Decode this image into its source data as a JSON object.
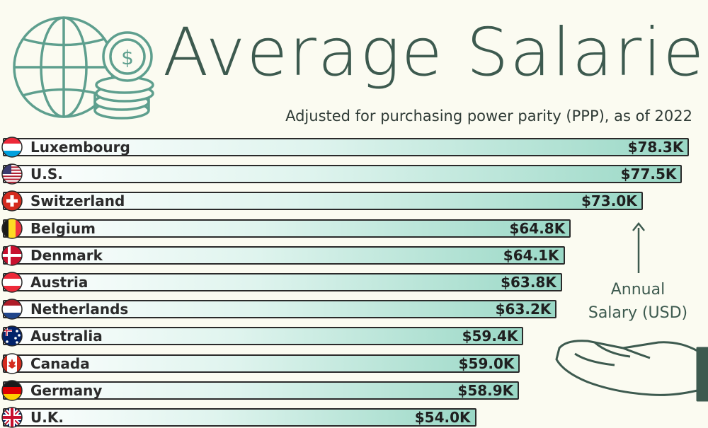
{
  "title": "Average Salaries",
  "subtitle": "Adjusted for purchasing power parity (PPP), as of 2022",
  "annotation": [
    "Annual",
    "Salary (USD)"
  ],
  "colors": {
    "title": "#3d5a4f",
    "bar_start": "#ffffff",
    "bar_end": "#9ad8c6",
    "outline": "#2a2a2a"
  },
  "chart_data": {
    "type": "bar",
    "orientation": "horizontal",
    "categories": [
      "Luxembourg",
      "U.S.",
      "Switzerland",
      "Belgium",
      "Denmark",
      "Austria",
      "Netherlands",
      "Australia",
      "Canada",
      "Germany",
      "U.K."
    ],
    "values": [
      78.3,
      77.5,
      73.0,
      64.8,
      64.1,
      63.8,
      63.2,
      59.4,
      59.0,
      58.9,
      54.0
    ],
    "labels": [
      "$78.3K",
      "$77.5K",
      "$73.0K",
      "$64.8K",
      "$64.1K",
      "$63.8K",
      "$63.2K",
      "$59.4K",
      "$59.0K",
      "$58.9K",
      "$54.0K"
    ],
    "unit": "USD thousands",
    "flags": [
      "luxembourg-flag-icon",
      "us-flag-icon",
      "switzerland-flag-icon",
      "belgium-flag-icon",
      "denmark-flag-icon",
      "austria-flag-icon",
      "netherlands-flag-icon",
      "australia-flag-icon",
      "canada-flag-icon",
      "germany-flag-icon",
      "uk-flag-icon"
    ],
    "icons": [
      "globe-icon",
      "coin-stack-icon",
      "open-hand-icon",
      "arrow-up-icon"
    ]
  }
}
